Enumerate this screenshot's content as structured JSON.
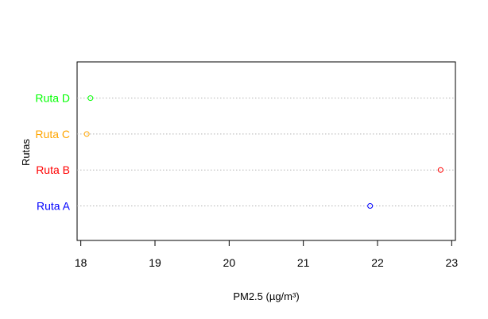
{
  "chart_data": {
    "type": "dotplot",
    "title": "",
    "xlabel": "PM2.5 (µg/m³)",
    "ylabel": "Rutas",
    "xlim": [
      17.95,
      23.05
    ],
    "xticks": [
      18,
      19,
      20,
      21,
      22,
      23
    ],
    "grid": "horizontal dotted",
    "categories": [
      "Ruta A",
      "Ruta B",
      "Ruta C",
      "Ruta D"
    ],
    "values": [
      21.9,
      22.85,
      18.08,
      18.13
    ],
    "colors": [
      "#0000ff",
      "#ff0000",
      "#ffa500",
      "#00ff00"
    ]
  }
}
